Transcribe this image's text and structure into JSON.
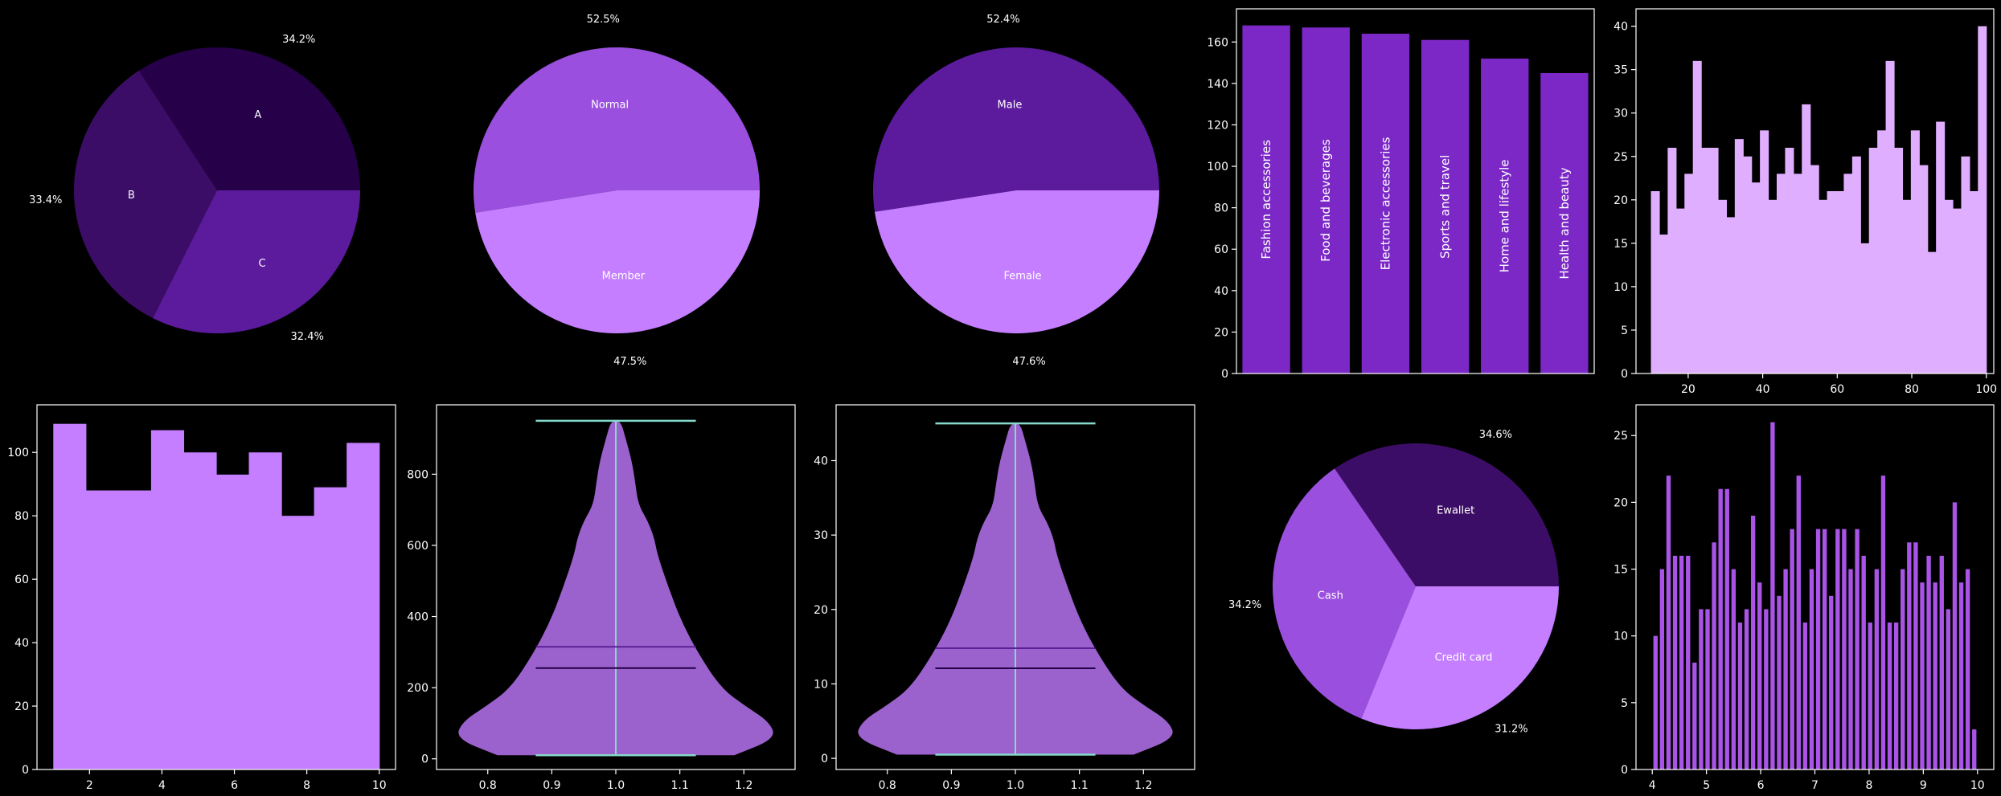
{
  "theme": {
    "background": "#000000",
    "axis": "#ffffff",
    "text": "#ffffff"
  },
  "chart_data": [
    {
      "id": "pie-branch",
      "type": "pie",
      "slices": [
        {
          "label": "A",
          "percent_label": "34.2%",
          "value": 34.2,
          "color": "#27004a"
        },
        {
          "label": "B",
          "percent_label": "33.4%",
          "value": 33.4,
          "color": "#3c0d66"
        },
        {
          "label": "C",
          "percent_label": "32.4%",
          "value": 32.4,
          "color": "#5b1b9c"
        }
      ]
    },
    {
      "id": "pie-customer-type",
      "type": "pie",
      "slices": [
        {
          "label": "Normal",
          "percent_label": "52.5%",
          "value": 52.5,
          "color": "#9a4fdf"
        },
        {
          "label": "Member",
          "percent_label": "47.5%",
          "value": 47.5,
          "color": "#c47eff"
        }
      ]
    },
    {
      "id": "pie-gender",
      "type": "pie",
      "slices": [
        {
          "label": "Male",
          "percent_label": "52.4%",
          "value": 52.4,
          "color": "#5b1b9c"
        },
        {
          "label": "Female",
          "percent_label": "47.6%",
          "value": 47.6,
          "color": "#c47eff"
        }
      ]
    },
    {
      "id": "bar-product-line",
      "type": "bar",
      "categories": [
        "Fashion accessories",
        "Food and beverages",
        "Electronic accessories",
        "Sports and travel",
        "Home and lifestyle",
        "Health and beauty"
      ],
      "values": [
        168,
        167,
        164,
        161,
        152,
        145
      ],
      "ylim": [
        0,
        176
      ],
      "yticks": [
        "0",
        "20",
        "40",
        "60",
        "80",
        "100",
        "120",
        "140",
        "160"
      ],
      "color": "#7b28c6"
    },
    {
      "id": "hist-unit-price",
      "type": "bar",
      "bin_edges": [
        10,
        100
      ],
      "values": [
        21,
        16,
        26,
        19,
        23,
        36,
        26,
        26,
        20,
        18,
        27,
        25,
        22,
        28,
        20,
        23,
        26,
        23,
        31,
        24,
        20,
        21,
        21,
        23,
        25,
        15,
        26,
        28,
        36,
        26,
        20,
        28,
        24,
        14,
        29,
        20,
        19,
        25,
        21,
        40
      ],
      "xlim": [
        6,
        102
      ],
      "ylim": [
        0,
        42
      ],
      "xticks": [
        "20",
        "40",
        "60",
        "80",
        "100"
      ],
      "yticks": [
        "0",
        "5",
        "10",
        "15",
        "20",
        "25",
        "30",
        "35",
        "40"
      ],
      "color": "#e0aeff"
    },
    {
      "id": "hist-quantity",
      "type": "bar",
      "bin_edges": [
        1,
        10
      ],
      "values": [
        109,
        88,
        88,
        107,
        100,
        93,
        100,
        80,
        89,
        103
      ],
      "xlim": [
        0.55,
        10.45
      ],
      "ylim": [
        0,
        115
      ],
      "xticks": [
        "2",
        "4",
        "6",
        "8",
        "10"
      ],
      "yticks": [
        "0",
        "20",
        "40",
        "60",
        "80",
        "100"
      ],
      "color": "#c47eff"
    },
    {
      "id": "violin-total",
      "type": "violin",
      "x": 1.0,
      "summary": {
        "min": 10,
        "max": 950,
        "mean": 315,
        "median": 255
      },
      "xlim": [
        0.72,
        1.28
      ],
      "ylim": [
        -30,
        995
      ],
      "xticks": [
        "0.8",
        "0.9",
        "1.0",
        "1.1",
        "1.2"
      ],
      "yticks": [
        "0",
        "200",
        "400",
        "600",
        "800"
      ],
      "color": "#9b61cc",
      "line_color": "#85d9c9"
    },
    {
      "id": "violin-tax",
      "type": "violin",
      "x": 1.0,
      "summary": {
        "min": 0.5,
        "max": 45,
        "mean": 14.8,
        "median": 12.1
      },
      "xlim": [
        0.72,
        1.28
      ],
      "ylim": [
        -1.5,
        47.5
      ],
      "xticks": [
        "0.8",
        "0.9",
        "1.0",
        "1.1",
        "1.2"
      ],
      "yticks": [
        "0",
        "10",
        "20",
        "30",
        "40"
      ],
      "color": "#9b61cc",
      "line_color": "#85d9c9"
    },
    {
      "id": "pie-payment",
      "type": "pie",
      "slices": [
        {
          "label": "Ewallet",
          "percent_label": "34.6%",
          "value": 34.6,
          "color": "#3c0d66"
        },
        {
          "label": "Cash",
          "percent_label": "34.2%",
          "value": 34.2,
          "color": "#9a4fdf"
        },
        {
          "label": "Credit card",
          "percent_label": "31.2%",
          "value": 31.2,
          "color": "#c47eff"
        }
      ]
    },
    {
      "id": "hist-rating",
      "type": "bar",
      "bin_edges": [
        4,
        10
      ],
      "values": [
        10,
        15,
        22,
        16,
        16,
        16,
        8,
        12,
        12,
        17,
        21,
        21,
        15,
        11,
        12,
        19,
        14,
        12,
        26,
        13,
        15,
        18,
        22,
        11,
        15,
        18,
        18,
        13,
        18,
        18,
        15,
        18,
        16,
        11,
        15,
        22,
        11,
        11,
        15,
        17,
        17,
        14,
        16,
        14,
        16,
        12,
        20,
        14,
        15,
        3
      ],
      "xlim": [
        3.7,
        10.3
      ],
      "ylim": [
        0,
        27.3
      ],
      "xticks": [
        "4",
        "5",
        "6",
        "7",
        "8",
        "9",
        "10"
      ],
      "yticks": [
        "0",
        "5",
        "10",
        "15",
        "20",
        "25"
      ],
      "color": "#a954e6"
    }
  ]
}
